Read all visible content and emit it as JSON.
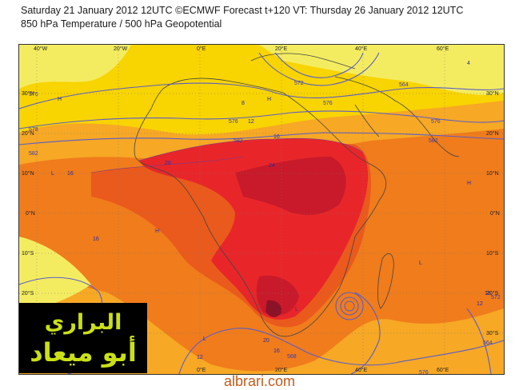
{
  "header": {
    "line1": "Saturday 21 January 2012 12UTC ©ECMWF Forecast t+120 VT: Thursday 26 January 2012 12UTC",
    "line2": "850 hPa Temperature / 500 hPa Geopotential"
  },
  "map": {
    "lon_labels": [
      "40°W",
      "20°W",
      "0°E",
      "20°E",
      "40°E",
      "60°E"
    ],
    "lat_labels": [
      "30°N",
      "20°N",
      "10°N",
      "0°N",
      "10°S",
      "20°S",
      "30°S"
    ],
    "temp_labels": [
      "8",
      "12",
      "16",
      "20",
      "24",
      "4",
      "16",
      "16",
      "16",
      "12",
      "12",
      "16",
      "20"
    ],
    "geo_labels": [
      "576",
      "578",
      "582",
      "576",
      "572",
      "576",
      "582",
      "564",
      "576",
      "582",
      "572",
      "568",
      "576",
      "564"
    ],
    "pressure_marks": [
      "H",
      "L",
      "L",
      "H",
      "L",
      "H",
      "L",
      "H"
    ],
    "colors": {
      "yellow": "#f8d400",
      "yellow_light": "#f4ec60",
      "orange_light": "#f7a824",
      "orange": "#f07c1c",
      "orange_dark": "#ea5a1c",
      "red": "#e8262a",
      "red_dark": "#c81a2a",
      "maroon": "#8c1228",
      "contour": "#5a5ec8",
      "coast": "#444444"
    }
  },
  "watermark": {
    "line1": "البراري",
    "line2": "أبو ميعاد",
    "site": "albrari.com"
  }
}
